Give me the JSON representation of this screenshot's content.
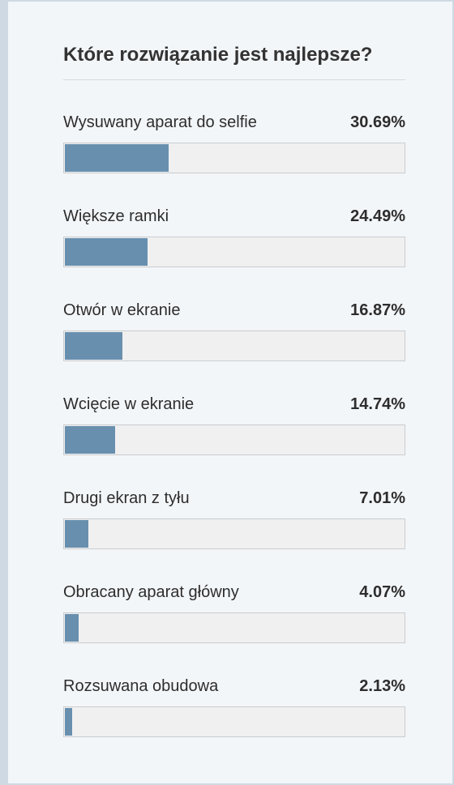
{
  "poll": {
    "title": "Które rozwiązanie jest najlepsze?",
    "options": [
      {
        "label": "Wysuwany aparat do selfie",
        "percent_text": "30.69%",
        "value": 30.69
      },
      {
        "label": "Większe ramki",
        "percent_text": "24.49%",
        "value": 24.49
      },
      {
        "label": "Otwór w ekranie",
        "percent_text": "16.87%",
        "value": 16.87
      },
      {
        "label": "Wcięcie w ekranie",
        "percent_text": "14.74%",
        "value": 14.74
      },
      {
        "label": "Drugi ekran z tyłu",
        "percent_text": "7.01%",
        "value": 7.01
      },
      {
        "label": "Obracany aparat główny",
        "percent_text": "4.07%",
        "value": 4.07
      },
      {
        "label": "Rozsuwana obudowa",
        "percent_text": "2.13%",
        "value": 2.13
      }
    ]
  },
  "colors": {
    "bar_fill": "#688fae",
    "bar_track": "#f0f0f0",
    "background": "#f3f6f9"
  }
}
